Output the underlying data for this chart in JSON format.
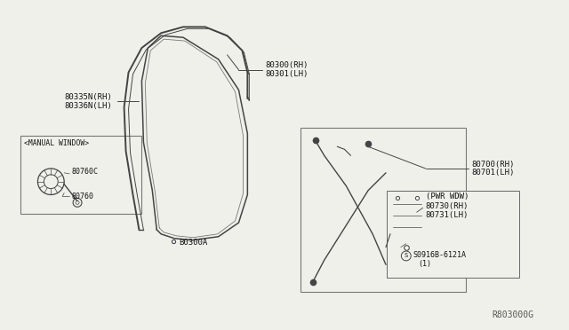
{
  "bg_color": "#f0f0eb",
  "diagram_id": "R803000G",
  "labels": {
    "80335N_RH": "80335N(RH)",
    "80336N_LH": "80336N(LH)",
    "80300_RH": "80300(RH)",
    "80301_LH": "80301(LH)",
    "80300A": "B0300A",
    "80700_RH": "80700(RH)",
    "80701_LH": "80701(LH)",
    "80730_RH": "80730(RH)",
    "80731_LH": "80731(LH)",
    "pwr_wdw": "(PWR WDW)",
    "manual_window": "<MANUAL WINDOW>",
    "80760C": "80760C",
    "80760": "80760",
    "screw": "S0916B-6121A",
    "screw2": "(1)"
  },
  "line_color": "#444444",
  "text_color": "#111111"
}
